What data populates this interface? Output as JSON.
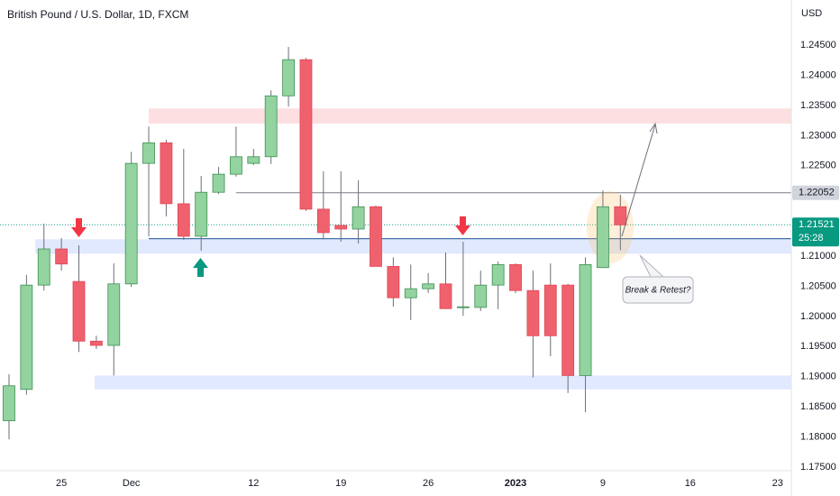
{
  "chart_data": {
    "type": "candlestick",
    "title": "British Pound / U.S. Dollar, 1D, FXCM",
    "currency": "USD",
    "categories": [
      null,
      null,
      null,
      "25",
      null,
      null,
      null,
      "Dec",
      null,
      null,
      null,
      null,
      null,
      null,
      "12",
      null,
      null,
      null,
      null,
      "19",
      null,
      null,
      null,
      null,
      "26",
      null,
      null,
      null,
      null,
      "2023",
      null,
      null,
      null,
      null,
      "9",
      null,
      null,
      null,
      null,
      "16",
      null,
      null,
      null,
      null,
      "23"
    ],
    "open": [
      1.1827,
      1.1879,
      1.2052,
      1.2112,
      1.2058,
      1.1959,
      1.1952,
      1.2054,
      1.2254,
      1.2288,
      1.2187,
      1.2133,
      1.2206,
      1.2236,
      1.2254,
      1.2265,
      1.2366,
      1.2426,
      1.2178,
      1.2151,
      1.2145,
      1.2182,
      1.2083,
      1.2031,
      1.2046,
      1.2054,
      1.2015,
      1.2015,
      1.2052,
      1.2086,
      1.2043,
      1.2052,
      1.2052,
      1.1902,
      1.2081,
      1.2182,
      null,
      null,
      null,
      null,
      null,
      null,
      null,
      null,
      null
    ],
    "high": [
      1.1904,
      1.2069,
      1.2154,
      1.213,
      1.2118,
      1.1968,
      1.2088,
      1.2273,
      1.2315,
      1.2293,
      1.2278,
      1.2233,
      1.2248,
      1.2315,
      1.2278,
      1.2375,
      1.2447,
      1.2429,
      1.2241,
      1.2241,
      1.2226,
      1.2184,
      1.2098,
      1.2086,
      1.2072,
      1.2106,
      1.2124,
      1.2076,
      1.2091,
      1.2088,
      1.2076,
      1.2088,
      1.2054,
      1.2098,
      1.2209,
      1.2202,
      null,
      null,
      null,
      null,
      null,
      null,
      null,
      null,
      null
    ],
    "low": [
      1.1796,
      1.187,
      1.2043,
      1.2076,
      1.1941,
      1.1946,
      1.1902,
      1.2049,
      1.2133,
      1.2166,
      1.2127,
      1.2109,
      1.2203,
      1.2232,
      1.2251,
      1.2253,
      1.2348,
      1.2175,
      1.2128,
      1.2124,
      1.2121,
      1.2083,
      1.2016,
      1.1994,
      1.2039,
      1.2012,
      1.2001,
      1.2009,
      1.2012,
      1.2039,
      1.1899,
      1.1934,
      1.1873,
      1.1841,
      1.2081,
      1.211,
      null,
      null,
      null,
      null,
      null,
      null,
      null,
      null,
      null
    ],
    "close": [
      1.1885,
      1.2052,
      1.2112,
      1.2087,
      1.1959,
      1.1952,
      1.2054,
      1.2254,
      1.2288,
      1.2187,
      1.2133,
      1.2206,
      1.2236,
      1.2265,
      1.2265,
      1.2366,
      1.2426,
      1.2178,
      1.2139,
      1.2145,
      1.2182,
      1.2083,
      1.2031,
      1.2046,
      1.2054,
      1.2013,
      1.2016,
      1.2052,
      1.2086,
      1.2043,
      1.1968,
      1.1968,
      1.1902,
      1.2086,
      1.2182,
      1.2152,
      null,
      null,
      null,
      null,
      null,
      null,
      null,
      null,
      null
    ],
    "up_color": "#92d3a0",
    "up_border": "#3f8f52",
    "down_color": "#f0616e",
    "down_border": "#e04654",
    "ylim": [
      1.1744,
      1.2525
    ],
    "yticks": [
      {
        "value": 1.245,
        "label": "1.24500"
      },
      {
        "value": 1.24,
        "label": "1.24000"
      },
      {
        "value": 1.235,
        "label": "1.23500"
      },
      {
        "value": 1.23,
        "label": "1.23000"
      },
      {
        "value": 1.225,
        "label": "1.22500"
      },
      {
        "value": 1.21,
        "label": "1.21000"
      },
      {
        "value": 1.205,
        "label": "1.20500"
      },
      {
        "value": 1.2,
        "label": "1.20000"
      },
      {
        "value": 1.195,
        "label": "1.19500"
      },
      {
        "value": 1.19,
        "label": "1.19000"
      },
      {
        "value": 1.185,
        "label": "1.18500"
      },
      {
        "value": 1.18,
        "label": "1.18000"
      },
      {
        "value": 1.175,
        "label": "1.17500"
      }
    ],
    "level_label": {
      "value": 1.22052,
      "label": "1.22052"
    },
    "last_price": {
      "value": 1.21521,
      "label": "1.21521"
    },
    "countdown": "25:28",
    "annotation": "Break & Retest?",
    "zones": [
      {
        "low": 1.232,
        "high": 1.2345,
        "start": 8,
        "color": "rgba(242,54,69,0.16)"
      },
      {
        "low": 1.2104,
        "high": 1.2128,
        "start": 1.5,
        "color": "rgba(41,98,255,0.14)"
      },
      {
        "low": 1.1879,
        "high": 1.1902,
        "start": 4.9,
        "color": "rgba(41,98,255,0.14)"
      }
    ],
    "support_line": {
      "value": 1.2129,
      "start": 8,
      "color": "#2a5d9c"
    }
  }
}
